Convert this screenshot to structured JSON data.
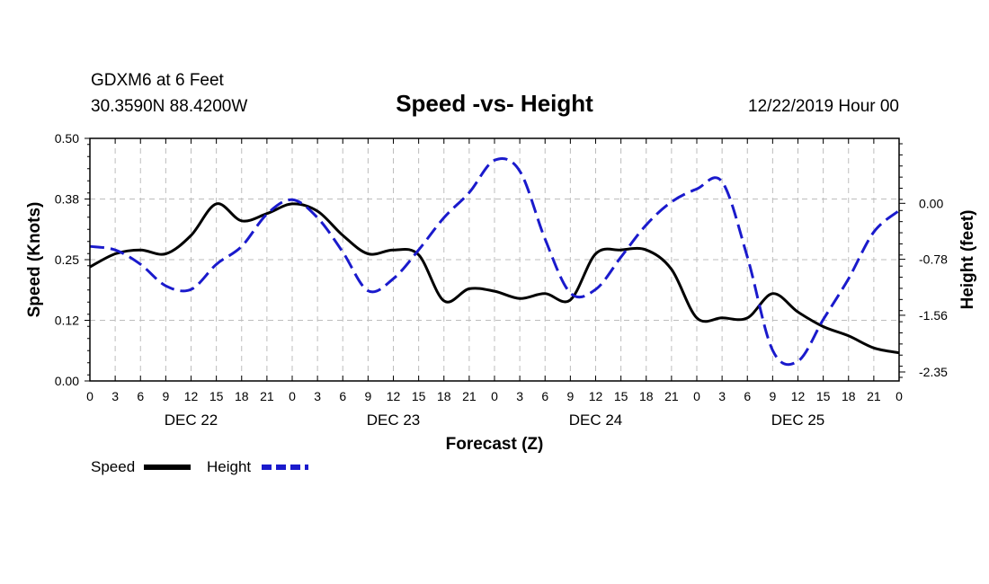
{
  "header": {
    "station": "GDXM6 at 6 Feet",
    "coords": "30.3590N 88.4200W",
    "title": "Speed -vs- Height",
    "run": "12/22/2019 Hour 00"
  },
  "legend": {
    "speed_label": "Speed",
    "height_label": "Height"
  },
  "colors": {
    "speed": "#000000",
    "height": "#1a1acc",
    "grid": "#bdbdbd"
  },
  "chart_data": {
    "type": "line",
    "title": "Speed -vs- Height",
    "xlabel": "Forecast (Z)",
    "ylabel": "Speed (Knots)",
    "y2label": "Height (feet)",
    "xlim": [
      0,
      96
    ],
    "ylim": [
      0,
      0.5
    ],
    "y2lim": [
      -2.35,
      0.78
    ],
    "x_ticks": [
      0,
      3,
      6,
      9,
      12,
      15,
      18,
      21,
      24,
      27,
      30,
      33,
      36,
      39,
      42,
      45,
      48,
      51,
      54,
      57,
      60,
      63,
      66,
      69,
      72,
      75,
      78,
      81,
      84,
      87,
      90,
      93,
      96
    ],
    "x_tick_labels": [
      "0",
      "3",
      "6",
      "9",
      "12",
      "15",
      "18",
      "21",
      "0",
      "3",
      "6",
      "9",
      "12",
      "15",
      "18",
      "21",
      "0",
      "3",
      "6",
      "9",
      "12",
      "15",
      "18",
      "21",
      "0",
      "3",
      "6",
      "9",
      "12",
      "15",
      "18",
      "21",
      "0"
    ],
    "day_labels": [
      {
        "x": 12,
        "label": "DEC 22"
      },
      {
        "x": 36,
        "label": "DEC 23"
      },
      {
        "x": 60,
        "label": "DEC 24"
      },
      {
        "x": 84,
        "label": "DEC 25"
      }
    ],
    "y_ticks": [
      0,
      0.125,
      0.25,
      0.375,
      0.5
    ],
    "y_tick_labels": [
      "0.00",
      "0.12",
      "0.25",
      "0.38",
      "0.50"
    ],
    "y2_ticks": [
      0,
      -0.78,
      -1.56,
      -2.35
    ],
    "y2_tick_labels": [
      "0.00",
      "-0.78",
      "-1.56",
      "-2.35"
    ],
    "grid": true,
    "legend_position": "bottom-left",
    "series": [
      {
        "name": "Speed",
        "axis": "left",
        "style": "solid",
        "x": [
          0,
          3,
          6,
          9,
          12,
          15,
          18,
          21,
          24,
          27,
          30,
          33,
          36,
          39,
          42,
          45,
          48,
          51,
          54,
          57,
          60,
          63,
          66,
          69,
          72,
          75,
          78,
          81,
          84,
          87,
          90,
          93,
          96
        ],
        "values": [
          0.235,
          0.262,
          0.27,
          0.262,
          0.3,
          0.365,
          0.33,
          0.345,
          0.365,
          0.35,
          0.3,
          0.262,
          0.27,
          0.26,
          0.165,
          0.19,
          0.185,
          0.17,
          0.18,
          0.167,
          0.262,
          0.27,
          0.27,
          0.23,
          0.13,
          0.13,
          0.13,
          0.18,
          0.142,
          0.112,
          0.093,
          0.068,
          0.058
        ]
      },
      {
        "name": "Height",
        "axis": "right",
        "style": "dashed",
        "x": [
          0,
          3,
          6,
          9,
          12,
          15,
          18,
          21,
          24,
          27,
          30,
          33,
          36,
          39,
          42,
          45,
          48,
          51,
          54,
          57,
          60,
          63,
          66,
          69,
          72,
          75,
          78,
          81,
          84,
          87,
          90,
          93,
          96
        ],
        "values": [
          -0.6,
          -0.65,
          -0.85,
          -1.15,
          -1.2,
          -0.85,
          -0.6,
          -0.15,
          0.05,
          -0.2,
          -0.68,
          -1.22,
          -1.05,
          -0.65,
          -0.2,
          0.15,
          0.6,
          0.45,
          -0.5,
          -1.25,
          -1.2,
          -0.75,
          -0.3,
          0.02,
          0.2,
          0.3,
          -0.75,
          -2.05,
          -2.2,
          -1.62,
          -1.05,
          -0.4,
          -0.1
        ]
      }
    ]
  }
}
